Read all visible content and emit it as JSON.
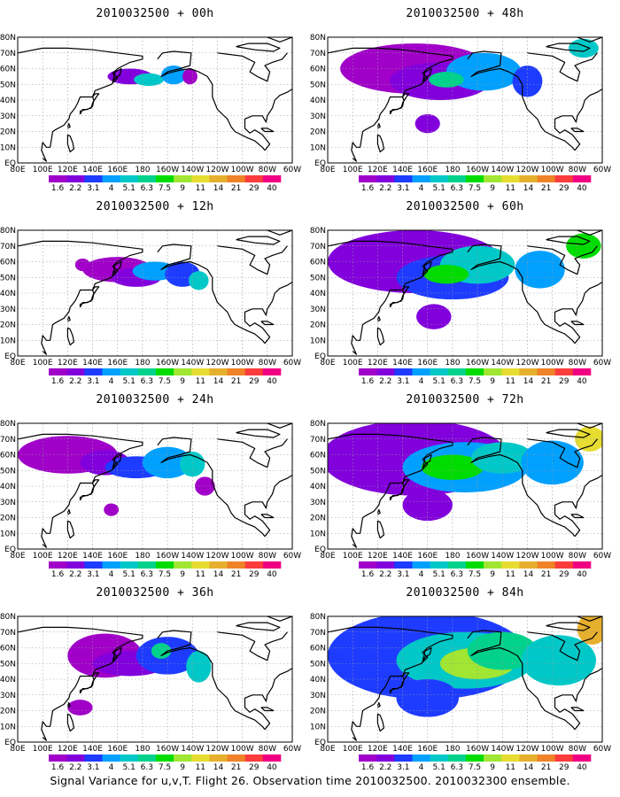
{
  "panels": [
    {
      "title": "2010032500 + 00h",
      "level": 0
    },
    {
      "title": "2010032500 + 48h",
      "level": 4
    },
    {
      "title": "2010032500 + 12h",
      "level": 1
    },
    {
      "title": "2010032500 + 60h",
      "level": 5
    },
    {
      "title": "2010032500 + 24h",
      "level": 2
    },
    {
      "title": "2010032500 + 72h",
      "level": 6
    },
    {
      "title": "2010032500 + 36h",
      "level": 3
    },
    {
      "title": "2010032500 + 84h",
      "level": 7
    }
  ],
  "lat_labels": [
    "80N",
    "70N",
    "60N",
    "50N",
    "40N",
    "30N",
    "20N",
    "10N",
    "EQ"
  ],
  "lon_labels": [
    "80E",
    "100E",
    "120E",
    "140E",
    "160E",
    "180",
    "160W",
    "140W",
    "120W",
    "100W",
    "80W",
    "60W"
  ],
  "colorbar": {
    "labels": [
      "1.6",
      "2.2",
      "3.1",
      "4",
      "5.1",
      "6.3",
      "7.5",
      "9",
      "11",
      "14",
      "21",
      "29",
      "40"
    ],
    "colors": [
      "#a000c8",
      "#8200dc",
      "#1e3cff",
      "#00a0ff",
      "#00c8c8",
      "#00d28c",
      "#00dc00",
      "#a0e632",
      "#e6dc32",
      "#e6af2d",
      "#f08228",
      "#fa3c3c",
      "#f00082"
    ]
  },
  "caption": "Signal Variance for u,v,T. Flight 26. Observation time 2010032500. 2010032300 ensemble."
}
